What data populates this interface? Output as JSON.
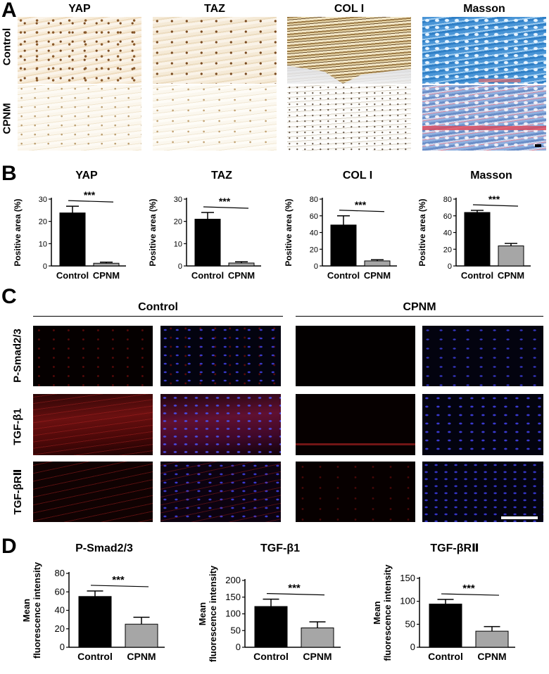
{
  "panel_labels": {
    "A": "A",
    "B": "B",
    "C": "C",
    "D": "D"
  },
  "panelA": {
    "columns": [
      "YAP",
      "TAZ",
      "COL I",
      "Masson"
    ],
    "rows": [
      "Control",
      "CPNM"
    ]
  },
  "panelC": {
    "groups": [
      "Control",
      "CPNM"
    ],
    "rows": [
      "P-Smad2/3",
      "TGF-β1",
      "TGF-βRⅡ"
    ]
  },
  "significance": "***",
  "chart_data": [
    {
      "type": "bar",
      "title": "YAP",
      "ylabel": "Positive area (%)",
      "categories": [
        "Control",
        "CPNM"
      ],
      "values": [
        23.8,
        1.2
      ],
      "errors": [
        3.0,
        0.5
      ],
      "ylim": [
        0,
        30
      ],
      "yticks": [
        0,
        10,
        20,
        30
      ],
      "colors": [
        "#000000",
        "#a6a6a6"
      ],
      "significance": "***"
    },
    {
      "type": "bar",
      "title": "TAZ",
      "ylabel": "Positive area (%)",
      "categories": [
        "Control",
        "CPNM"
      ],
      "values": [
        21,
        1.3
      ],
      "errors": [
        3.0,
        0.6
      ],
      "ylim": [
        0,
        30
      ],
      "yticks": [
        0,
        10,
        20,
        30
      ],
      "colors": [
        "#000000",
        "#a6a6a6"
      ],
      "significance": "***"
    },
    {
      "type": "bar",
      "title": "COL I",
      "ylabel": "Positive area (%)",
      "categories": [
        "Control",
        "CPNM"
      ],
      "values": [
        49,
        6
      ],
      "errors": [
        11,
        1.5
      ],
      "ylim": [
        0,
        80
      ],
      "yticks": [
        0,
        20,
        40,
        60,
        80
      ],
      "colors": [
        "#000000",
        "#a6a6a6"
      ],
      "significance": "***"
    },
    {
      "type": "bar",
      "title": "Masson",
      "ylabel": "Positive area (%)",
      "categories": [
        "Control",
        "CPNM"
      ],
      "values": [
        64,
        24
      ],
      "errors": [
        2.5,
        3
      ],
      "ylim": [
        0,
        80
      ],
      "yticks": [
        0,
        20,
        40,
        60,
        80
      ],
      "colors": [
        "#000000",
        "#a6a6a6"
      ],
      "significance": "***"
    },
    {
      "type": "bar",
      "title": "P-Smad2/3",
      "ylabel": "Mean\nfluorescence intensity",
      "categories": [
        "Control",
        "CPNM"
      ],
      "values": [
        55,
        25
      ],
      "errors": [
        6,
        7.5
      ],
      "ylim": [
        0,
        80
      ],
      "yticks": [
        0,
        20,
        40,
        60,
        80
      ],
      "colors": [
        "#000000",
        "#a6a6a6"
      ],
      "significance": "***"
    },
    {
      "type": "bar",
      "title": "TGF-β1",
      "ylabel": "Mean\nfluorescence intensity",
      "categories": [
        "Control",
        "CPNM"
      ],
      "values": [
        122,
        58
      ],
      "errors": [
        22,
        18
      ],
      "ylim": [
        0,
        200
      ],
      "yticks": [
        0,
        50,
        100,
        150,
        200
      ],
      "colors": [
        "#000000",
        "#a6a6a6"
      ],
      "significance": "***"
    },
    {
      "type": "bar",
      "title": "TGF-βRⅡ",
      "ylabel": "Mean\nfluorescence intensity",
      "categories": [
        "Control",
        "CPNM"
      ],
      "values": [
        94,
        35
      ],
      "errors": [
        10,
        10
      ],
      "ylim": [
        0,
        150
      ],
      "yticks": [
        0,
        50,
        100,
        150
      ],
      "colors": [
        "#000000",
        "#a6a6a6"
      ],
      "significance": "***"
    }
  ]
}
